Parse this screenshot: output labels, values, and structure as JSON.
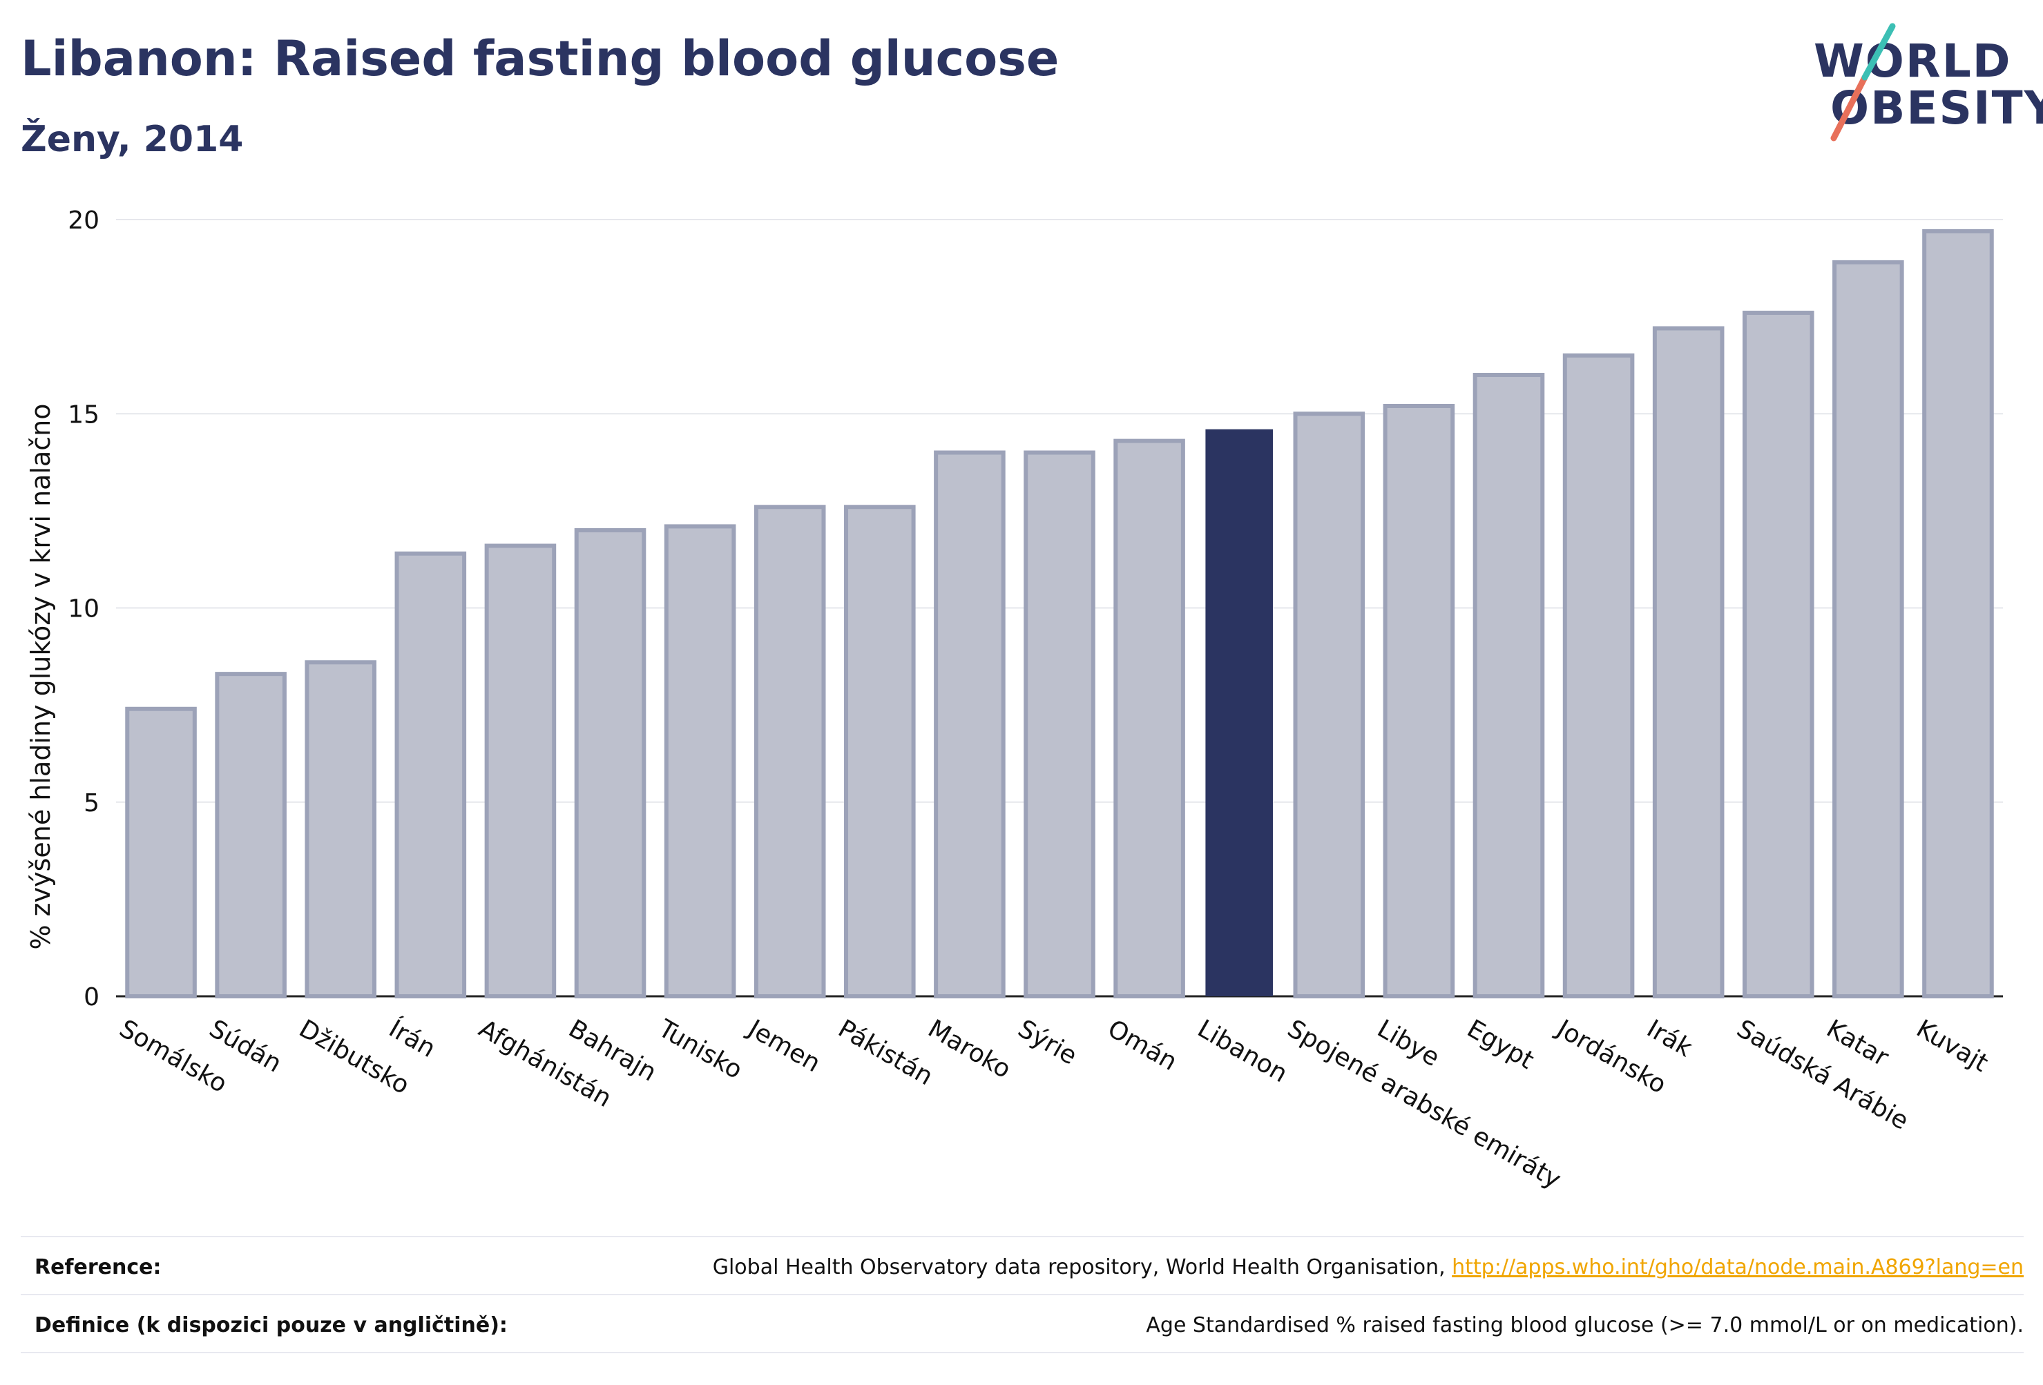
{
  "header": {
    "title": "Libanon: Raised fasting blood glucose",
    "subtitle": "Ženy, 2014"
  },
  "logo": {
    "line1": "WORLD",
    "line2": "OBESITY",
    "accent_colors": [
      "#e8705a",
      "#3cbfb4"
    ]
  },
  "chart_data": {
    "type": "bar",
    "ylabel": "% zvýšené hladiny glukózy v krvi nalačno",
    "xlabel": "",
    "ylim": [
      0,
      20
    ],
    "yticks": [
      0,
      5,
      10,
      15,
      20
    ],
    "grid": true,
    "highlight": "Libanon",
    "colors": {
      "bar": "#bdc0cd",
      "bar_border": "#9ca2b8",
      "highlight": "#2b3461"
    },
    "categories": [
      "Somálsko",
      "Súdán",
      "Džibutsko",
      "Írán",
      "Afghánistán",
      "Bahrajn",
      "Tunisko",
      "Jemen",
      "Pákistán",
      "Maroko",
      "Sýrie",
      "Omán",
      "Libanon",
      "Spojené arabské emiráty",
      "Libye",
      "Egypt",
      "Jordánsko",
      "Irák",
      "Saúdská Arábie",
      "Katar",
      "Kuvajt"
    ],
    "values": [
      7.4,
      8.3,
      8.6,
      11.4,
      11.6,
      12.0,
      12.1,
      12.6,
      12.6,
      14.0,
      14.0,
      14.3,
      14.6,
      15.0,
      15.2,
      16.0,
      16.5,
      17.2,
      17.6,
      18.9,
      19.7
    ]
  },
  "footer": {
    "reference_label": "Reference:",
    "reference_text": "Global Health Observatory data repository, World Health Organisation, ",
    "reference_link": "http://apps.who.int/gho/data/node.main.A869?lang=en",
    "definition_label": "Definice (k dispozici pouze v angličtině):",
    "definition_text": "Age Standardised % raised fasting blood glucose (>= 7.0 mmol/L or on medication)."
  }
}
